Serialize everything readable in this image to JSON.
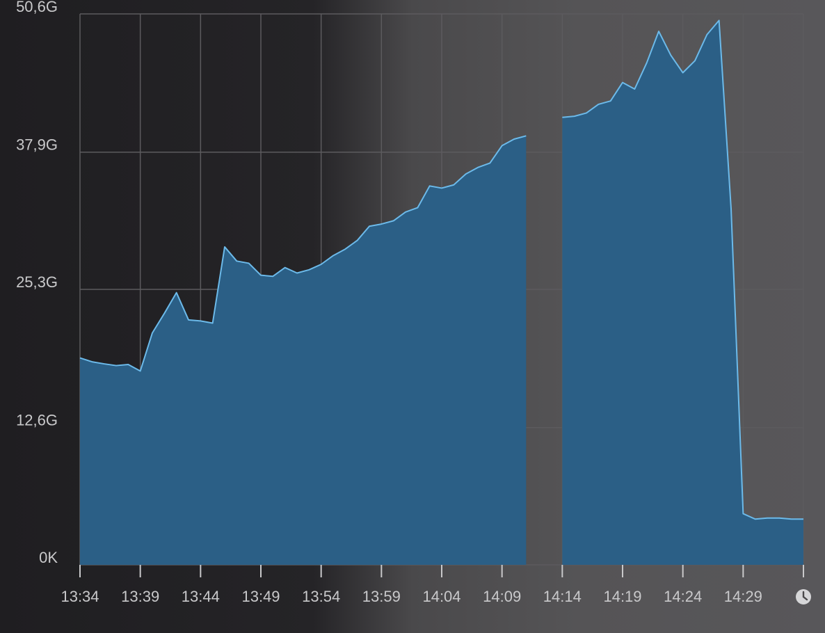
{
  "chart_data": {
    "type": "area",
    "x": [
      "13:34",
      "13:35",
      "13:36",
      "13:37",
      "13:38",
      "13:39",
      "13:40",
      "13:41",
      "13:42",
      "13:43",
      "13:44",
      "13:45",
      "13:46",
      "13:47",
      "13:48",
      "13:49",
      "13:50",
      "13:51",
      "13:52",
      "13:53",
      "13:54",
      "13:55",
      "13:56",
      "13:57",
      "13:58",
      "13:59",
      "14:00",
      "14:01",
      "14:02",
      "14:03",
      "14:04",
      "14:05",
      "14:06",
      "14:07",
      "14:08",
      "14:09",
      "14:10",
      "14:11",
      "14:12",
      "14:13",
      "14:14",
      "14:15",
      "14:16",
      "14:17",
      "14:18",
      "14:19",
      "14:20",
      "14:21",
      "14:22",
      "14:23",
      "14:24",
      "14:25",
      "14:26",
      "14:27",
      "14:28",
      "14:29",
      "14:30",
      "14:31",
      "14:32",
      "14:33",
      "14:34"
    ],
    "values": [
      19.0,
      18.65,
      18.46,
      18.3,
      18.4,
      17.8,
      21.3,
      23.1,
      25.0,
      22.5,
      22.4,
      22.2,
      29.2,
      27.9,
      27.7,
      26.6,
      26.5,
      27.3,
      26.8,
      27.1,
      27.6,
      28.4,
      29.0,
      29.8,
      31.1,
      31.3,
      31.6,
      32.4,
      32.8,
      34.8,
      34.6,
      34.9,
      35.9,
      36.5,
      36.9,
      38.5,
      39.1,
      39.4,
      null,
      null,
      41.1,
      41.2,
      41.5,
      42.3,
      42.6,
      44.3,
      43.7,
      46.1,
      49.0,
      46.8,
      45.2,
      46.3,
      48.7,
      50.0,
      32.7,
      4.7,
      4.2,
      4.3,
      4.3,
      4.2,
      4.2
    ],
    "color": "#2b5f86",
    "line_color": "#6cbaea",
    "xlim": [
      "13:34",
      "14:34"
    ],
    "xticks": [
      "13:34",
      "13:39",
      "13:44",
      "13:49",
      "13:54",
      "13:59",
      "14:04",
      "14:09",
      "14:14",
      "14:19",
      "14:24",
      "14:29"
    ],
    "ylim": [
      0,
      50.6
    ],
    "yticks": [
      {
        "value": 0,
        "label": "0K"
      },
      {
        "value": 12.6,
        "label": "12,6G"
      },
      {
        "value": 25.3,
        "label": "25,3G"
      },
      {
        "value": 37.9,
        "label": "37,9G"
      },
      {
        "value": 50.6,
        "label": "50,6G"
      }
    ],
    "grid": true
  }
}
